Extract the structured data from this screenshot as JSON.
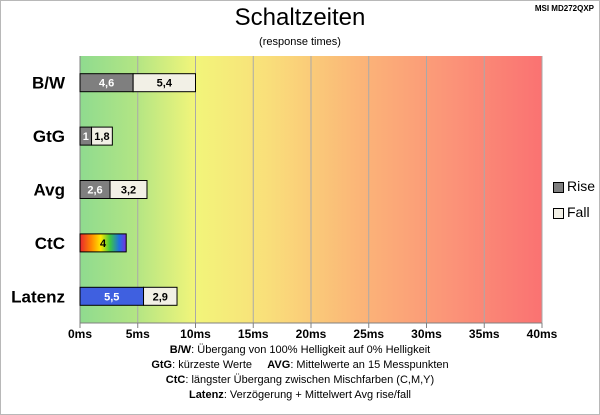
{
  "header": {
    "title": "Schaltzeiten",
    "subtitle": "(response times)",
    "model": "MSI MD272QXP"
  },
  "chart_data": {
    "type": "bar",
    "orientation": "horizontal",
    "stacked": true,
    "title": "Schaltzeiten",
    "subtitle": "(response times)",
    "categories": [
      "B/W",
      "GtG",
      "Avg",
      "CtC",
      "Latenz"
    ],
    "series": [
      {
        "name": "Rise",
        "color": "#7f7f7f",
        "values": [
          4.6,
          1,
          2.6,
          null,
          null
        ],
        "labels": [
          "4,6",
          "1",
          "2,6",
          "",
          ""
        ]
      },
      {
        "name": "Fall",
        "color": "#f2f0e6",
        "values": [
          5.4,
          1.8,
          3.2,
          null,
          2.9
        ],
        "labels": [
          "5,4",
          "1,8",
          "3,2",
          "",
          "2,9"
        ]
      }
    ],
    "special_bars": [
      {
        "category": "CtC",
        "value": 4,
        "label": "4",
        "fill": "rainbow"
      },
      {
        "category": "Latenz",
        "value": 5.5,
        "label": "5,5",
        "fill": "#3f60e0"
      }
    ],
    "xlim": [
      0,
      40
    ],
    "xticks": [
      "0ms",
      "5ms",
      "10ms",
      "15ms",
      "20ms",
      "25ms",
      "30ms",
      "35ms",
      "40ms"
    ],
    "xtick_values": [
      0,
      5,
      10,
      15,
      20,
      25,
      30,
      35,
      40
    ],
    "background": "gradient green-yellow-red",
    "grid": "vertical",
    "legend_position": "right"
  },
  "footer": {
    "line1_key": "B/W",
    "line1_text": ": Übergang von 100% Helligkeit auf 0% Helligkeit",
    "line2_key_a": "GtG",
    "line2_text_a": ": kürzeste Werte",
    "line2_key_b": "AVG",
    "line2_text_b": ": Mittelwerte an 15 Messpunkten",
    "line3_key": "CtC",
    "line3_text": ": längster Übergang zwischen Mischfarben (C,M,Y)",
    "line4_key": "Latenz",
    "line4_text": ": Verzögerung + Mittelwert Avg rise/fall"
  }
}
